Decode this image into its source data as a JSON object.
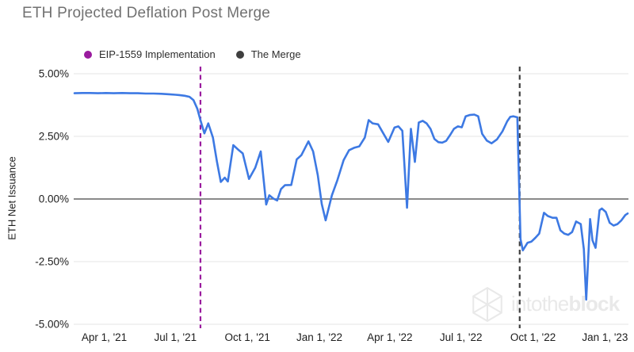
{
  "header": {
    "title": "ETH Projected Deflation Post Merge"
  },
  "legend": [
    {
      "label": "EIP-1559 Implementation",
      "color": "#9A1B9E"
    },
    {
      "label": "The Merge",
      "color": "#3F3F3F"
    }
  ],
  "watermark": {
    "brand_regular": "intothe",
    "brand_bold": "block",
    "icon": "intotheblock-cube-icon",
    "color": "#e9e9e9"
  },
  "chart_data": {
    "type": "line",
    "title": "ETH Projected Deflation Post Merge",
    "xlabel": "",
    "ylabel": "ETH Net Issuance",
    "series_name": "ETH Net Issuance (%)",
    "line_color": "#3D79E3",
    "grid": true,
    "legend_position": "top",
    "ylim": [
      -5,
      5
    ],
    "x_domain": [
      "2021-02-21",
      "2023-01-31"
    ],
    "y_ticks": [
      {
        "value": 5,
        "label": "5.00%"
      },
      {
        "value": 2.5,
        "label": "2.50%"
      },
      {
        "value": 0,
        "label": "0.00%"
      },
      {
        "value": -2.5,
        "label": "-2.50%"
      },
      {
        "value": -5,
        "label": "-5.00%"
      }
    ],
    "x_ticks": [
      {
        "date": "2021-04-01",
        "label": "Apr 1, '21"
      },
      {
        "date": "2021-07-01",
        "label": "Jul 1, '21"
      },
      {
        "date": "2021-10-01",
        "label": "Oct 1, '21"
      },
      {
        "date": "2022-01-01",
        "label": "Jan 1, '22"
      },
      {
        "date": "2022-04-01",
        "label": "Apr 1, '22"
      },
      {
        "date": "2022-07-01",
        "label": "Jul 1, '22"
      },
      {
        "date": "2022-10-01",
        "label": "Oct 1, '22"
      },
      {
        "date": "2023-01-01",
        "label": "Jan 1, '23"
      }
    ],
    "annotations": [
      {
        "label": "EIP-1559 Implementation",
        "date": "2021-08-02",
        "color": "#9A1B9E",
        "style": "dashed"
      },
      {
        "label": "The Merge",
        "date": "2022-09-14",
        "color": "#3F3F3F",
        "style": "dashed"
      }
    ],
    "points": [
      [
        "2021-02-22",
        4.22
      ],
      [
        "2021-03-04",
        4.23
      ],
      [
        "2021-03-14",
        4.23
      ],
      [
        "2021-03-24",
        4.22
      ],
      [
        "2021-04-03",
        4.23
      ],
      [
        "2021-04-13",
        4.22
      ],
      [
        "2021-04-24",
        4.23
      ],
      [
        "2021-05-04",
        4.22
      ],
      [
        "2021-05-14",
        4.22
      ],
      [
        "2021-05-24",
        4.21
      ],
      [
        "2021-06-03",
        4.21
      ],
      [
        "2021-06-13",
        4.2
      ],
      [
        "2021-06-23",
        4.18
      ],
      [
        "2021-07-01",
        4.16
      ],
      [
        "2021-07-06",
        4.15
      ],
      [
        "2021-07-13",
        4.12
      ],
      [
        "2021-07-19",
        4.08
      ],
      [
        "2021-07-24",
        3.95
      ],
      [
        "2021-07-29",
        3.6
      ],
      [
        "2021-08-02",
        3.15
      ],
      [
        "2021-08-07",
        2.62
      ],
      [
        "2021-08-12",
        3.02
      ],
      [
        "2021-08-18",
        2.45
      ],
      [
        "2021-08-23",
        1.5
      ],
      [
        "2021-08-28",
        0.68
      ],
      [
        "2021-09-02",
        0.85
      ],
      [
        "2021-09-06",
        0.7
      ],
      [
        "2021-09-13",
        2.15
      ],
      [
        "2021-09-20",
        1.95
      ],
      [
        "2021-09-25",
        1.82
      ],
      [
        "2021-10-03",
        0.8
      ],
      [
        "2021-10-11",
        1.25
      ],
      [
        "2021-10-18",
        1.9
      ],
      [
        "2021-10-25",
        -0.22
      ],
      [
        "2021-10-29",
        0.15
      ],
      [
        "2021-11-03",
        0.02
      ],
      [
        "2021-11-08",
        -0.06
      ],
      [
        "2021-11-13",
        0.4
      ],
      [
        "2021-11-18",
        0.55
      ],
      [
        "2021-11-26",
        0.56
      ],
      [
        "2021-12-03",
        1.58
      ],
      [
        "2021-12-09",
        1.75
      ],
      [
        "2021-12-18",
        2.3
      ],
      [
        "2021-12-24",
        1.9
      ],
      [
        "2021-12-30",
        0.95
      ],
      [
        "2022-01-04",
        -0.2
      ],
      [
        "2022-01-09",
        -0.85
      ],
      [
        "2022-01-17",
        0.15
      ],
      [
        "2022-01-24",
        0.75
      ],
      [
        "2022-02-01",
        1.55
      ],
      [
        "2022-02-08",
        1.95
      ],
      [
        "2022-02-15",
        2.05
      ],
      [
        "2022-02-21",
        2.1
      ],
      [
        "2022-02-28",
        2.45
      ],
      [
        "2022-03-05",
        3.15
      ],
      [
        "2022-03-10",
        3.02
      ],
      [
        "2022-03-17",
        2.98
      ],
      [
        "2022-03-24",
        2.6
      ],
      [
        "2022-03-30",
        2.28
      ],
      [
        "2022-04-07",
        2.85
      ],
      [
        "2022-04-12",
        2.9
      ],
      [
        "2022-04-17",
        2.72
      ],
      [
        "2022-04-23",
        -0.35
      ],
      [
        "2022-04-28",
        2.8
      ],
      [
        "2022-05-03",
        1.48
      ],
      [
        "2022-05-08",
        3.05
      ],
      [
        "2022-05-13",
        3.12
      ],
      [
        "2022-05-18",
        3.02
      ],
      [
        "2022-05-23",
        2.8
      ],
      [
        "2022-05-28",
        2.4
      ],
      [
        "2022-06-02",
        2.27
      ],
      [
        "2022-06-07",
        2.25
      ],
      [
        "2022-06-12",
        2.32
      ],
      [
        "2022-06-17",
        2.55
      ],
      [
        "2022-06-22",
        2.8
      ],
      [
        "2022-06-27",
        2.9
      ],
      [
        "2022-07-02",
        2.86
      ],
      [
        "2022-07-07",
        3.3
      ],
      [
        "2022-07-12",
        3.35
      ],
      [
        "2022-07-18",
        3.37
      ],
      [
        "2022-07-23",
        3.3
      ],
      [
        "2022-07-28",
        2.6
      ],
      [
        "2022-08-03",
        2.33
      ],
      [
        "2022-08-09",
        2.22
      ],
      [
        "2022-08-16",
        2.38
      ],
      [
        "2022-08-23",
        2.7
      ],
      [
        "2022-08-29",
        3.1
      ],
      [
        "2022-09-02",
        3.28
      ],
      [
        "2022-09-06",
        3.3
      ],
      [
        "2022-09-11",
        3.26
      ],
      [
        "2022-09-15",
        -1.6
      ],
      [
        "2022-09-18",
        -2.05
      ],
      [
        "2022-09-24",
        -1.75
      ],
      [
        "2022-09-29",
        -1.7
      ],
      [
        "2022-10-04",
        -1.55
      ],
      [
        "2022-10-09",
        -1.38
      ],
      [
        "2022-10-15",
        -0.55
      ],
      [
        "2022-10-20",
        -0.68
      ],
      [
        "2022-10-26",
        -0.75
      ],
      [
        "2022-10-31",
        -0.75
      ],
      [
        "2022-11-05",
        -1.25
      ],
      [
        "2022-11-10",
        -1.38
      ],
      [
        "2022-11-15",
        -1.43
      ],
      [
        "2022-11-20",
        -1.32
      ],
      [
        "2022-11-25",
        -0.9
      ],
      [
        "2022-12-01",
        -1.0
      ],
      [
        "2022-12-05",
        -2.0
      ],
      [
        "2022-12-08",
        -4.02
      ],
      [
        "2022-12-13",
        -0.8
      ],
      [
        "2022-12-16",
        -1.65
      ],
      [
        "2022-12-20",
        -1.95
      ],
      [
        "2022-12-25",
        -0.45
      ],
      [
        "2022-12-28",
        -0.38
      ],
      [
        "2023-01-02",
        -0.52
      ],
      [
        "2023-01-07",
        -0.95
      ],
      [
        "2023-01-12",
        -1.06
      ],
      [
        "2023-01-17",
        -1.0
      ],
      [
        "2023-01-22",
        -0.85
      ],
      [
        "2023-01-27",
        -0.64
      ],
      [
        "2023-01-30",
        -0.58
      ]
    ]
  }
}
